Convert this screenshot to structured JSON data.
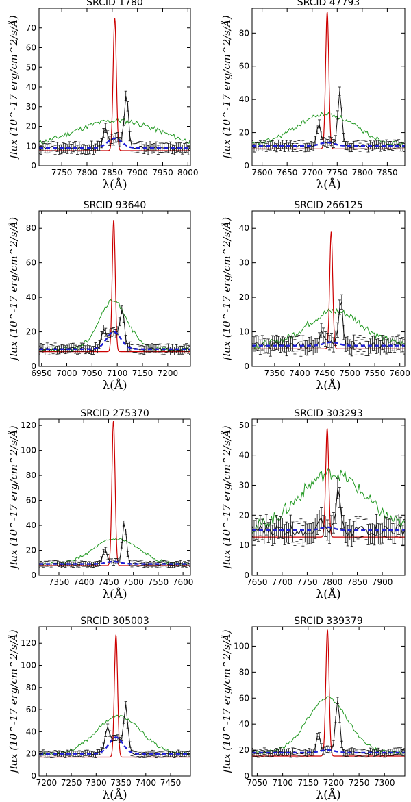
{
  "colors": {
    "model": "#cc0000",
    "continuum": "#1f1fd6",
    "broad": "#229922",
    "data": "#111111"
  },
  "chart_data": [
    {
      "type": "line",
      "title": "SRCID 1780",
      "xlabel": "λ(Å)",
      "ylabel": "flux  (10^-17 erg/cm^2/s/Å)",
      "xlim": [
        7705,
        8005
      ],
      "ylim": [
        0,
        80
      ],
      "xticks": [
        7750,
        7800,
        7850,
        7900,
        7950,
        8000
      ],
      "yticks": [
        0,
        10,
        20,
        30,
        40,
        50,
        60,
        70
      ],
      "continuum": 9,
      "narrow_peak": 75,
      "narrow_center": 7855,
      "narrow_sigma": 3.2,
      "broad_peak": 23,
      "broad_center": 7860,
      "broad_sigma": 85,
      "satellites": [
        {
          "center": 7835,
          "amp": 8,
          "sigma": 4
        },
        {
          "center": 7878,
          "amp": 26,
          "sigma": 4
        }
      ],
      "obs_peak": 14,
      "noise": 1.2
    },
    {
      "type": "line",
      "title": "SRCID 47793",
      "xlabel": "λ(Å)",
      "ylabel": "flux  (10^-17 erg/cm^2/s/Å)",
      "xlim": [
        7580,
        7885
      ],
      "ylim": [
        0,
        95
      ],
      "xticks": [
        7600,
        7650,
        7700,
        7750,
        7800,
        7850
      ],
      "yticks": [
        0,
        20,
        40,
        60,
        80
      ],
      "continuum": 12,
      "narrow_peak": 93,
      "narrow_center": 7730,
      "narrow_sigma": 3.2,
      "broad_peak": 31,
      "broad_center": 7728,
      "broad_sigma": 60,
      "satellites": [
        {
          "center": 7713,
          "amp": 12,
          "sigma": 4
        },
        {
          "center": 7755,
          "amp": 33,
          "sigma": 4
        }
      ],
      "obs_peak": 14,
      "noise": 1.3
    },
    {
      "type": "line",
      "title": "SRCID 93640",
      "xlabel": "λ(Å)",
      "ylabel": "flux  (10^-17 erg/cm^2/s/Å)",
      "xlim": [
        6945,
        7245
      ],
      "ylim": [
        0,
        90
      ],
      "xticks": [
        6950,
        7000,
        7050,
        7100,
        7150,
        7200
      ],
      "yticks": [
        0,
        20,
        40,
        60,
        80
      ],
      "continuum": 10,
      "narrow_peak": 85,
      "narrow_center": 7093,
      "narrow_sigma": 3.0,
      "broad_peak": 38,
      "broad_center": 7092,
      "broad_sigma": 28,
      "satellites": [
        {
          "center": 7073,
          "amp": 7,
          "sigma": 4
        },
        {
          "center": 7110,
          "amp": 18,
          "sigma": 4
        }
      ],
      "obs_peak": 20,
      "noise": 1.2
    },
    {
      "type": "line",
      "title": "SRCID 266125",
      "xlabel": "λ(Å)",
      "ylabel": "flux  (10^-17 erg/cm^2/s/Å)",
      "xlim": [
        7305,
        7610
      ],
      "ylim": [
        0,
        45
      ],
      "xticks": [
        7350,
        7400,
        7450,
        7500,
        7550,
        7600
      ],
      "yticks": [
        0,
        10,
        20,
        30,
        40
      ],
      "continuum": 6,
      "narrow_peak": 39,
      "narrow_center": 7463,
      "narrow_sigma": 3.0,
      "broad_peak": 16,
      "broad_center": 7470,
      "broad_sigma": 55,
      "satellites": [
        {
          "center": 7445,
          "amp": 4,
          "sigma": 4
        },
        {
          "center": 7482,
          "amp": 13,
          "sigma": 4
        }
      ],
      "obs_peak": 7,
      "noise": 1.0
    },
    {
      "type": "line",
      "title": "SRCID 275370",
      "xlabel": "λ(Å)",
      "ylabel": "flux  (10^-17 erg/cm^2/s/Å)",
      "xlim": [
        7310,
        7615
      ],
      "ylim": [
        0,
        125
      ],
      "xticks": [
        7350,
        7400,
        7450,
        7500,
        7550,
        7600
      ],
      "yticks": [
        0,
        20,
        40,
        60,
        80,
        100,
        120
      ],
      "continuum": 9,
      "narrow_peak": 124,
      "narrow_center": 7460,
      "narrow_sigma": 3.2,
      "broad_peak": 29,
      "broad_center": 7465,
      "broad_sigma": 45,
      "satellites": [
        {
          "center": 7443,
          "amp": 11,
          "sigma": 4
        },
        {
          "center": 7482,
          "amp": 34,
          "sigma": 4
        }
      ],
      "obs_peak": 11,
      "noise": 1.0
    },
    {
      "type": "line",
      "title": "SRCID 303293",
      "xlabel": "λ(Å)",
      "ylabel": "flux  (10^-17 erg/cm^2/s/Å)",
      "xlim": [
        7640,
        7945
      ],
      "ylim": [
        0,
        52
      ],
      "xticks": [
        7650,
        7700,
        7750,
        7800,
        7850,
        7900
      ],
      "yticks": [
        0,
        10,
        20,
        30,
        40,
        50
      ],
      "continuum": 15,
      "narrow_peak": 49,
      "narrow_center": 7790,
      "narrow_sigma": 3.0,
      "broad_peak": 34,
      "broad_center": 7800,
      "broad_sigma": 65,
      "satellites": [
        {
          "center": 7773,
          "amp": 4,
          "sigma": 4
        },
        {
          "center": 7813,
          "amp": 14,
          "sigma": 4
        }
      ],
      "obs_peak": 16,
      "noise": 2.0
    },
    {
      "type": "line",
      "title": "SRCID 305003",
      "xlabel": "λ(Å)",
      "ylabel": "flux  (10^-17 erg/cm^2/s/Å)",
      "xlim": [
        7185,
        7490
      ],
      "ylim": [
        0,
        135
      ],
      "xticks": [
        7200,
        7250,
        7300,
        7350,
        7400,
        7450
      ],
      "yticks": [
        0,
        20,
        40,
        60,
        80,
        100,
        120
      ],
      "continuum": 20,
      "narrow_peak": 128,
      "narrow_center": 7340,
      "narrow_sigma": 3.2,
      "broad_peak": 54,
      "broad_center": 7345,
      "broad_sigma": 45,
      "satellites": [
        {
          "center": 7322,
          "amp": 18,
          "sigma": 4
        },
        {
          "center": 7360,
          "amp": 38,
          "sigma": 4
        }
      ],
      "obs_peak": 35,
      "noise": 1.3
    },
    {
      "type": "line",
      "title": "SRCID 339379",
      "xlabel": "λ(Å)",
      "ylabel": "flux  (10^-17 erg/cm^2/s/Å)",
      "xlim": [
        7040,
        7340
      ],
      "ylim": [
        0,
        115
      ],
      "xticks": [
        7050,
        7100,
        7150,
        7200,
        7250,
        7300
      ],
      "yticks": [
        0,
        20,
        40,
        60,
        80,
        100
      ],
      "continuum": 18,
      "narrow_peak": 113,
      "narrow_center": 7188,
      "narrow_sigma": 3.2,
      "broad_peak": 60,
      "broad_center": 7188,
      "broad_sigma": 40,
      "satellites": [
        {
          "center": 7170,
          "amp": 12,
          "sigma": 4
        },
        {
          "center": 7208,
          "amp": 40,
          "sigma": 4
        }
      ],
      "obs_peak": 20,
      "noise": 1.3
    }
  ]
}
